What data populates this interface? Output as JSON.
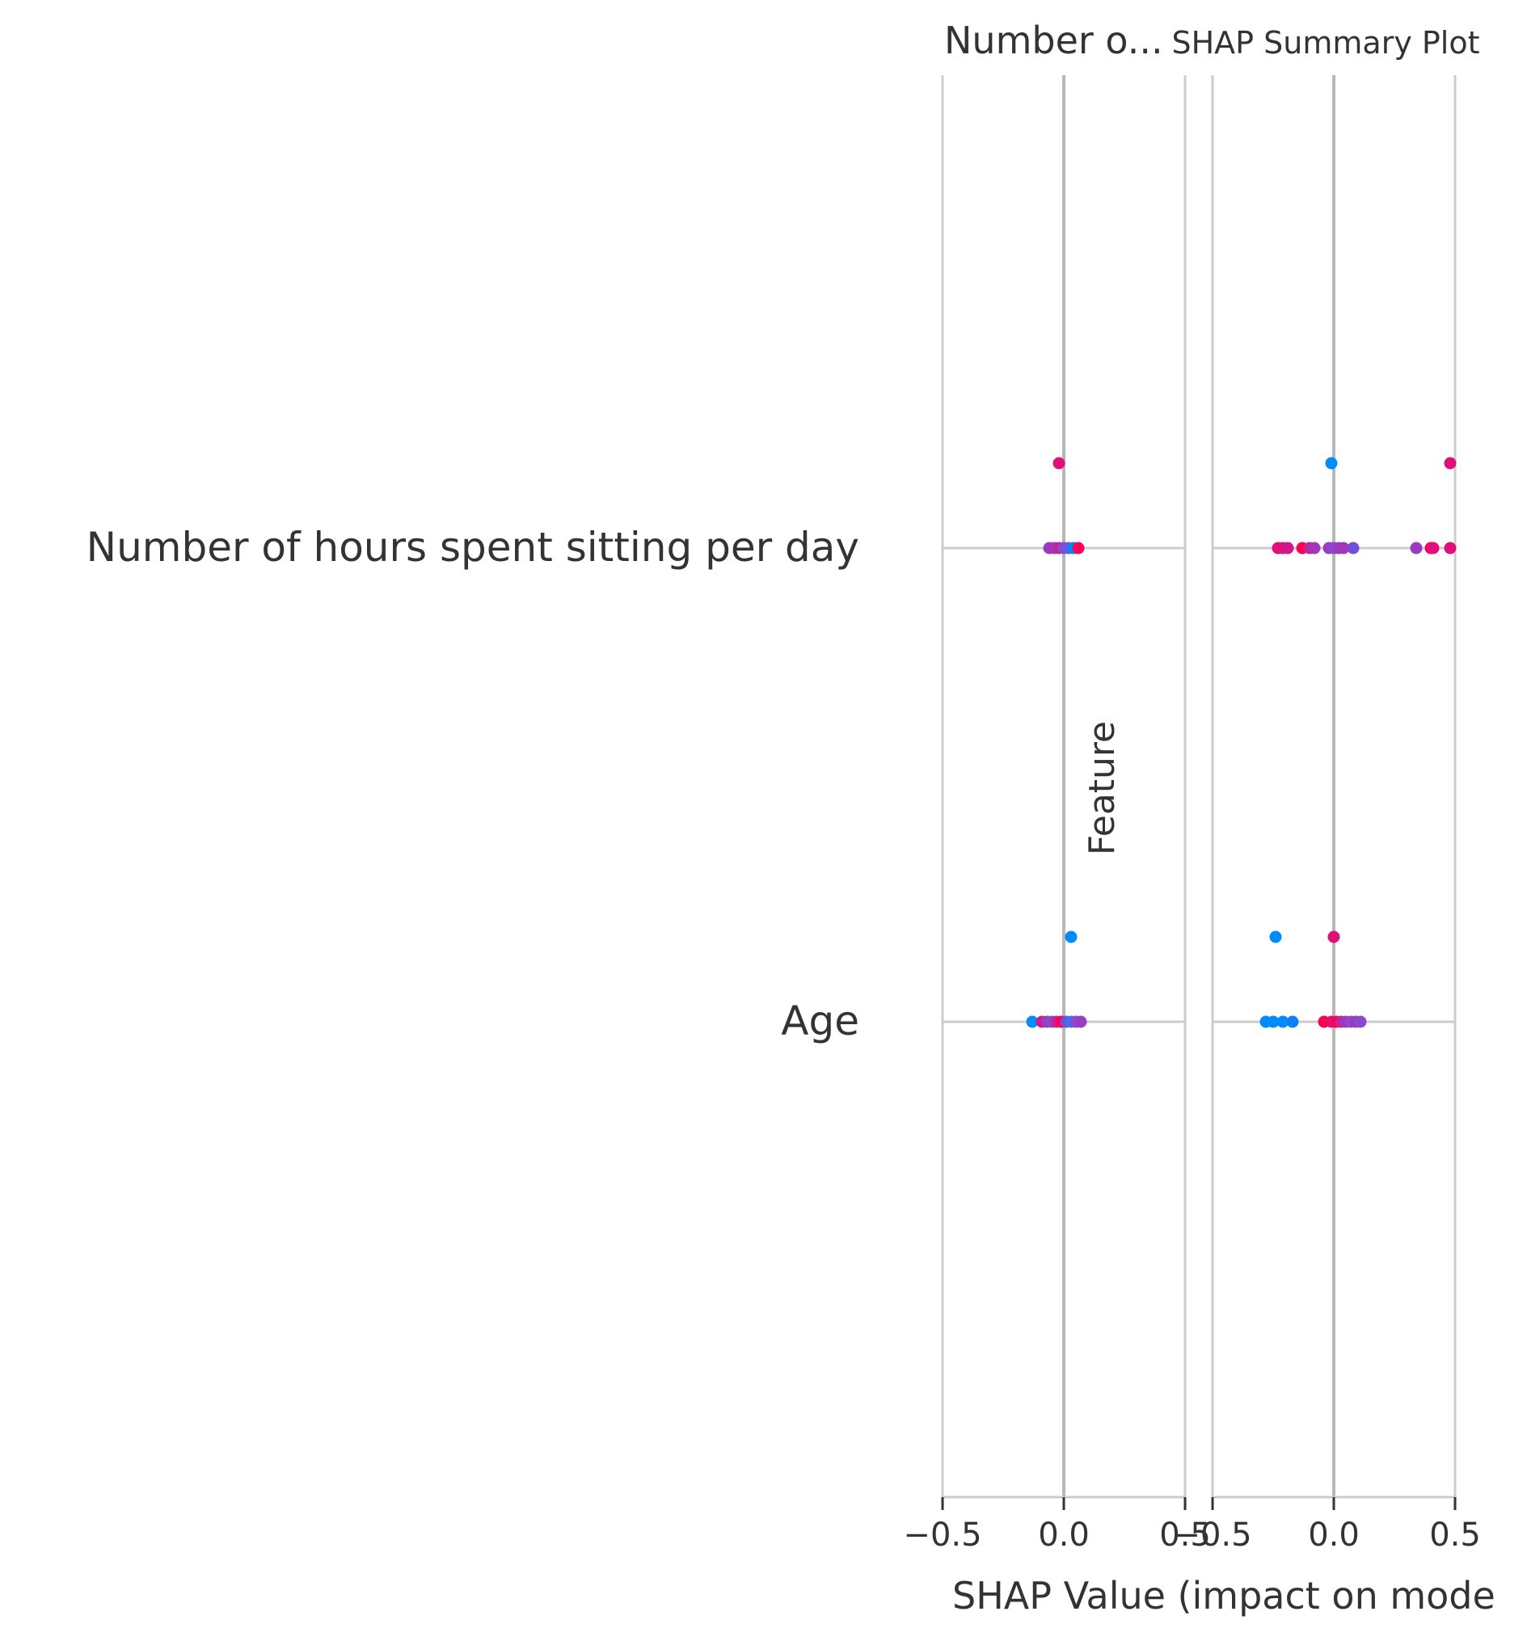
{
  "chart_data": {
    "type": "scatter",
    "title": "SHAP Summary Plot",
    "xlabel": "SHAP Value (impact on mode",
    "ylabel": "Feature",
    "features": [
      "Number of hours spent sitting per day",
      "Age"
    ],
    "xlim": [
      -0.5,
      0.5
    ],
    "xticks": [
      -0.5,
      0.0,
      0.5
    ],
    "xtick_labels": [
      "−0.5",
      "0.0",
      "0.5"
    ],
    "grid": true,
    "colors": {
      "low": "#008bfb",
      "mid": "#8a4ad0",
      "high": "#ff0052"
    },
    "panels": [
      {
        "title": "Number o...",
        "points": [
          {
            "feature": "Number of hours spent sitting per day",
            "x": -0.02,
            "y_offset": 1,
            "color": "#e0107a"
          },
          {
            "feature": "Number of hours spent sitting per day",
            "x": -0.06,
            "y_offset": 0,
            "color": "#9a3cc0"
          },
          {
            "feature": "Number of hours spent sitting per day",
            "x": -0.04,
            "y_offset": 0,
            "color": "#a235b8"
          },
          {
            "feature": "Number of hours spent sitting per day",
            "x": -0.02,
            "y_offset": 0,
            "color": "#c0259a"
          },
          {
            "feature": "Number of hours spent sitting per day",
            "x": 0.0,
            "y_offset": 0,
            "color": "#8a4ad0"
          },
          {
            "feature": "Number of hours spent sitting per day",
            "x": 0.02,
            "y_offset": 0,
            "color": "#6a5ae0"
          },
          {
            "feature": "Number of hours spent sitting per day",
            "x": 0.04,
            "y_offset": 0,
            "color": "#008bfb"
          },
          {
            "feature": "Number of hours spent sitting per day",
            "x": 0.06,
            "y_offset": 0,
            "color": "#ff0052"
          },
          {
            "feature": "Age",
            "x": 0.03,
            "y_offset": 1,
            "color": "#008bfb"
          },
          {
            "feature": "Age",
            "x": -0.13,
            "y_offset": 0,
            "color": "#008bfb"
          },
          {
            "feature": "Age",
            "x": -0.09,
            "y_offset": 0,
            "color": "#d0188a"
          },
          {
            "feature": "Age",
            "x": -0.07,
            "y_offset": 0,
            "color": "#9a3cc0"
          },
          {
            "feature": "Age",
            "x": -0.05,
            "y_offset": 0,
            "color": "#8a4ad0"
          },
          {
            "feature": "Age",
            "x": -0.03,
            "y_offset": 0,
            "color": "#c0259a"
          },
          {
            "feature": "Age",
            "x": -0.01,
            "y_offset": 0,
            "color": "#ff0052"
          },
          {
            "feature": "Age",
            "x": 0.01,
            "y_offset": 0,
            "color": "#7050d8"
          },
          {
            "feature": "Age",
            "x": 0.03,
            "y_offset": 0,
            "color": "#4070f0"
          },
          {
            "feature": "Age",
            "x": 0.05,
            "y_offset": 0,
            "color": "#8a4ad0"
          },
          {
            "feature": "Age",
            "x": 0.07,
            "y_offset": 0,
            "color": "#9a3cc0"
          }
        ]
      },
      {
        "title": "SHAP Summary Plot",
        "points": [
          {
            "feature": "Number of hours spent sitting per day",
            "x": -0.01,
            "y_offset": 1,
            "color": "#008bfb"
          },
          {
            "feature": "Number of hours spent sitting per day",
            "x": 0.48,
            "y_offset": 1,
            "color": "#e0107a"
          },
          {
            "feature": "Number of hours spent sitting per day",
            "x": -0.23,
            "y_offset": 0,
            "color": "#e0107a"
          },
          {
            "feature": "Number of hours spent sitting per day",
            "x": -0.21,
            "y_offset": 0,
            "color": "#e0107a"
          },
          {
            "feature": "Number of hours spent sitting per day",
            "x": -0.19,
            "y_offset": 0,
            "color": "#d0188a"
          },
          {
            "feature": "Number of hours spent sitting per day",
            "x": -0.13,
            "y_offset": 0,
            "color": "#ff0052"
          },
          {
            "feature": "Number of hours spent sitting per day",
            "x": -0.1,
            "y_offset": 0,
            "color": "#c0259a"
          },
          {
            "feature": "Number of hours spent sitting per day",
            "x": -0.08,
            "y_offset": 0,
            "color": "#a235b8"
          },
          {
            "feature": "Number of hours spent sitting per day",
            "x": -0.02,
            "y_offset": 0,
            "color": "#9a3cc0"
          },
          {
            "feature": "Number of hours spent sitting per day",
            "x": 0.0,
            "y_offset": 0,
            "color": "#8a4ad0"
          },
          {
            "feature": "Number of hours spent sitting per day",
            "x": 0.02,
            "y_offset": 0,
            "color": "#9a3cc0"
          },
          {
            "feature": "Number of hours spent sitting per day",
            "x": 0.04,
            "y_offset": 0,
            "color": "#a235b8"
          },
          {
            "feature": "Number of hours spent sitting per day",
            "x": 0.08,
            "y_offset": 0,
            "color": "#7050d8"
          },
          {
            "feature": "Number of hours spent sitting per day",
            "x": 0.34,
            "y_offset": 0,
            "color": "#9a3cc0"
          },
          {
            "feature": "Number of hours spent sitting per day",
            "x": 0.4,
            "y_offset": 0,
            "color": "#ff0052"
          },
          {
            "feature": "Number of hours spent sitting per day",
            "x": 0.41,
            "y_offset": 0,
            "color": "#e0107a"
          },
          {
            "feature": "Number of hours spent sitting per day",
            "x": 0.48,
            "y_offset": 0,
            "color": "#e0107a"
          },
          {
            "feature": "Age",
            "x": -0.24,
            "y_offset": 1,
            "color": "#008bfb"
          },
          {
            "feature": "Age",
            "x": 0.0,
            "y_offset": 1,
            "color": "#e0107a"
          },
          {
            "feature": "Age",
            "x": -0.28,
            "y_offset": 0,
            "color": "#008bfb"
          },
          {
            "feature": "Age",
            "x": -0.25,
            "y_offset": 0,
            "color": "#008bfb"
          },
          {
            "feature": "Age",
            "x": -0.21,
            "y_offset": 0,
            "color": "#008bfb"
          },
          {
            "feature": "Age",
            "x": -0.17,
            "y_offset": 0,
            "color": "#1080f8"
          },
          {
            "feature": "Age",
            "x": -0.04,
            "y_offset": 0,
            "color": "#ff0052"
          },
          {
            "feature": "Age",
            "x": -0.01,
            "y_offset": 0,
            "color": "#e0107a"
          },
          {
            "feature": "Age",
            "x": 0.01,
            "y_offset": 0,
            "color": "#ff0052"
          },
          {
            "feature": "Age",
            "x": 0.03,
            "y_offset": 0,
            "color": "#c0259a"
          },
          {
            "feature": "Age",
            "x": 0.05,
            "y_offset": 0,
            "color": "#a235b8"
          },
          {
            "feature": "Age",
            "x": 0.07,
            "y_offset": 0,
            "color": "#8a4ad0"
          },
          {
            "feature": "Age",
            "x": 0.09,
            "y_offset": 0,
            "color": "#9a3cc0"
          },
          {
            "feature": "Age",
            "x": 0.11,
            "y_offset": 0,
            "color": "#8a4ad0"
          }
        ]
      }
    ]
  }
}
